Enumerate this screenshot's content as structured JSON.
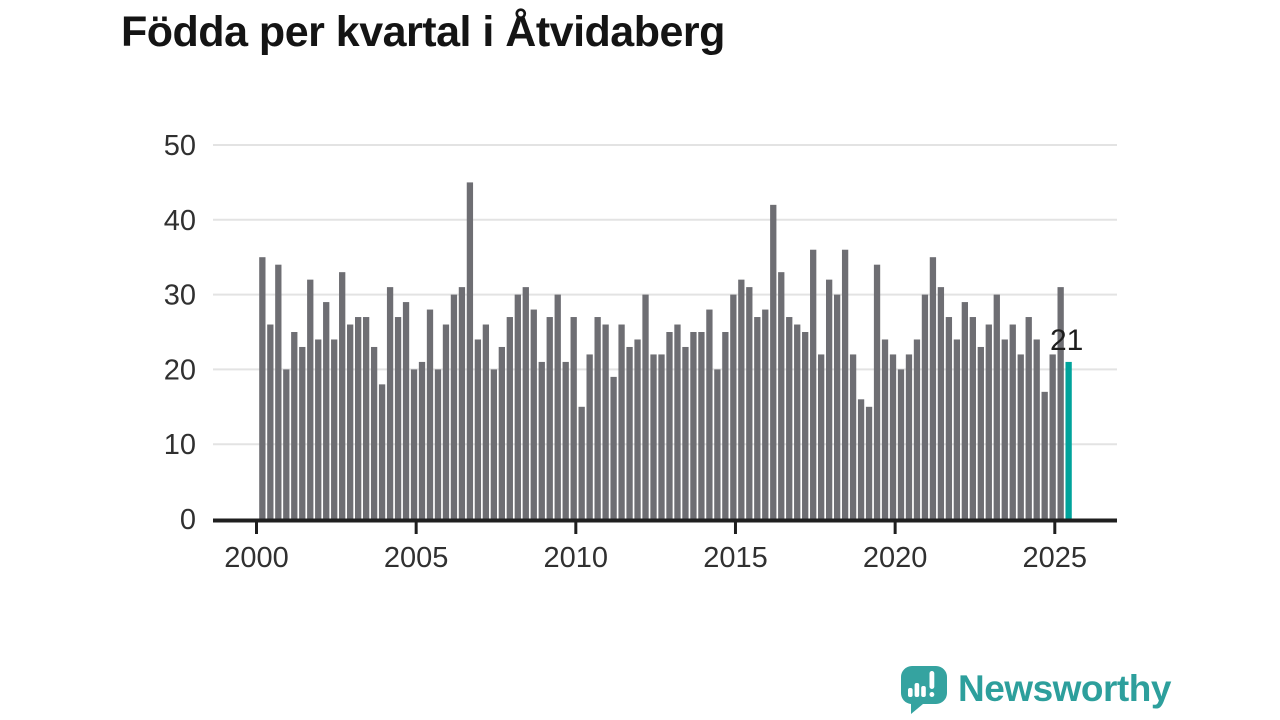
{
  "title": "Födda per kvartal i Åtvidaberg",
  "footer": {
    "brand": "Newsworthy",
    "logo_icon": "speech-bubble-bar-chart-exclamation"
  },
  "colors": {
    "bar": "#6e6e73",
    "highlight": "#00a39b",
    "grid": "#e3e3e3",
    "axis": "#1f1f1f",
    "tick_text": "#303030",
    "title_text": "#141414",
    "label_text": "#1d1d1d",
    "brand": "#2d9f9c"
  },
  "chart_data": {
    "type": "bar",
    "title": "Födda per kvartal i Åtvidaberg",
    "unit": "births per quarter",
    "start_quarter": "2000-Q1",
    "end_quarter": "2025-Q2",
    "ylim": [
      0,
      50
    ],
    "y_ticks": [
      0,
      10,
      20,
      30,
      40,
      50
    ],
    "x_ticks": [
      2000,
      2005,
      2010,
      2015,
      2020,
      2025
    ],
    "grid": true,
    "highlight_last_bar": true,
    "highlight_label": "21",
    "years": [
      {
        "year": 2000,
        "values": [
          35,
          26,
          34,
          20
        ]
      },
      {
        "year": 2001,
        "values": [
          25,
          23,
          32,
          24
        ]
      },
      {
        "year": 2002,
        "values": [
          29,
          24,
          33,
          26
        ]
      },
      {
        "year": 2003,
        "values": [
          27,
          27,
          23,
          18
        ]
      },
      {
        "year": 2004,
        "values": [
          31,
          27,
          29,
          20
        ]
      },
      {
        "year": 2005,
        "values": [
          21,
          28,
          20,
          26
        ]
      },
      {
        "year": 2006,
        "values": [
          30,
          31,
          45,
          24
        ]
      },
      {
        "year": 2007,
        "values": [
          26,
          20,
          23,
          27
        ]
      },
      {
        "year": 2008,
        "values": [
          30,
          31,
          28,
          21
        ]
      },
      {
        "year": 2009,
        "values": [
          27,
          30,
          21,
          27
        ]
      },
      {
        "year": 2010,
        "values": [
          15,
          22,
          27,
          26
        ]
      },
      {
        "year": 2011,
        "values": [
          19,
          26,
          23,
          24
        ]
      },
      {
        "year": 2012,
        "values": [
          30,
          22,
          22,
          25
        ]
      },
      {
        "year": 2013,
        "values": [
          26,
          23,
          25,
          25
        ]
      },
      {
        "year": 2014,
        "values": [
          28,
          20,
          25,
          30
        ]
      },
      {
        "year": 2015,
        "values": [
          32,
          31,
          27,
          28
        ]
      },
      {
        "year": 2016,
        "values": [
          42,
          33,
          27,
          26
        ]
      },
      {
        "year": 2017,
        "values": [
          25,
          36,
          22,
          32
        ]
      },
      {
        "year": 2018,
        "values": [
          30,
          36,
          22,
          16
        ]
      },
      {
        "year": 2019,
        "values": [
          15,
          34,
          24,
          22
        ]
      },
      {
        "year": 2020,
        "values": [
          20,
          22,
          24,
          30
        ]
      },
      {
        "year": 2021,
        "values": [
          35,
          31,
          27,
          24
        ]
      },
      {
        "year": 2022,
        "values": [
          29,
          27,
          23,
          26
        ]
      },
      {
        "year": 2023,
        "values": [
          30,
          24,
          26,
          22
        ]
      },
      {
        "year": 2024,
        "values": [
          27,
          24,
          17,
          22
        ]
      },
      {
        "year": 2025,
        "values": [
          31,
          21
        ]
      }
    ]
  }
}
